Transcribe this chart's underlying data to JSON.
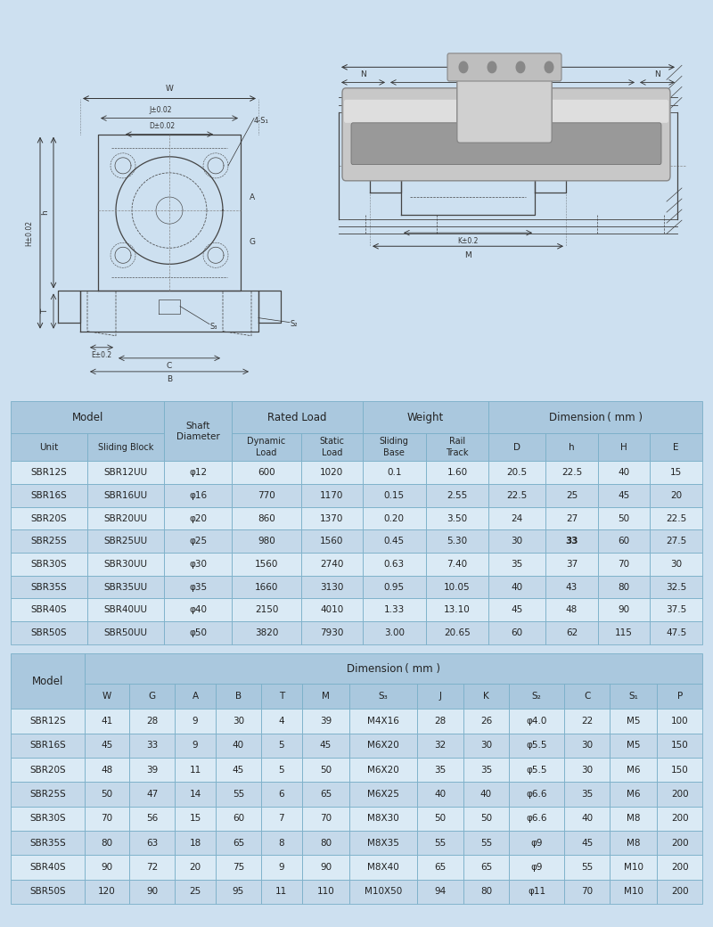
{
  "bg_color": "#cde0f0",
  "table1_header_bg": "#aac8de",
  "table1_row_bg_even": "#daeaf5",
  "table1_row_bg_odd": "#c5d9ea",
  "table_border_color": "#7aafc8",
  "text_color": "#222222",
  "table1_data": [
    [
      "SBR12S",
      "SBR12UU",
      "φ12",
      "600",
      "1020",
      "0.1",
      "1.60",
      "20.5",
      "22.5",
      "40",
      "15"
    ],
    [
      "SBR16S",
      "SBR16UU",
      "φ16",
      "770",
      "1170",
      "0.15",
      "2.55",
      "22.5",
      "25",
      "45",
      "20"
    ],
    [
      "SBR20S",
      "SBR20UU",
      "φ20",
      "860",
      "1370",
      "0.20",
      "3.50",
      "24",
      "27",
      "50",
      "22.5"
    ],
    [
      "SBR25S",
      "SBR25UU",
      "φ25",
      "980",
      "1560",
      "0.45",
      "5.30",
      "30",
      "33",
      "60",
      "27.5"
    ],
    [
      "SBR30S",
      "SBR30UU",
      "φ30",
      "1560",
      "2740",
      "0.63",
      "7.40",
      "35",
      "37",
      "70",
      "30"
    ],
    [
      "SBR35S",
      "SBR35UU",
      "φ35",
      "1660",
      "3130",
      "0.95",
      "10.05",
      "40",
      "43",
      "80",
      "32.5"
    ],
    [
      "SBR40S",
      "SBR40UU",
      "φ40",
      "2150",
      "4010",
      "1.33",
      "13.10",
      "45",
      "48",
      "90",
      "37.5"
    ],
    [
      "SBR50S",
      "SBR50UU",
      "φ50",
      "3820",
      "7930",
      "3.00",
      "20.65",
      "60",
      "62",
      "115",
      "47.5"
    ]
  ],
  "table1_bold_cell": [
    3,
    8
  ],
  "table2_col_headers": [
    "Model",
    "W",
    "G",
    "A",
    "B",
    "T",
    "M",
    "S₃",
    "J",
    "K",
    "S₂",
    "C",
    "S₁",
    "P"
  ],
  "table2_data": [
    [
      "SBR12S",
      "41",
      "28",
      "9",
      "30",
      "4",
      "39",
      "M4X16",
      "28",
      "26",
      "φ4.0",
      "22",
      "M5",
      "100"
    ],
    [
      "SBR16S",
      "45",
      "33",
      "9",
      "40",
      "5",
      "45",
      "M6X20",
      "32",
      "30",
      "φ5.5",
      "30",
      "M5",
      "150"
    ],
    [
      "SBR20S",
      "48",
      "39",
      "11",
      "45",
      "5",
      "50",
      "M6X20",
      "35",
      "35",
      "φ5.5",
      "30",
      "M6",
      "150"
    ],
    [
      "SBR25S",
      "50",
      "47",
      "14",
      "55",
      "6",
      "65",
      "M6X25",
      "40",
      "40",
      "φ6.6",
      "35",
      "M6",
      "200"
    ],
    [
      "SBR30S",
      "70",
      "56",
      "15",
      "60",
      "7",
      "70",
      "M8X30",
      "50",
      "50",
      "φ6.6",
      "40",
      "M8",
      "200"
    ],
    [
      "SBR35S",
      "80",
      "63",
      "18",
      "65",
      "8",
      "80",
      "M8X35",
      "55",
      "55",
      "φ9",
      "45",
      "M8",
      "200"
    ],
    [
      "SBR40S",
      "90",
      "72",
      "20",
      "75",
      "9",
      "90",
      "M8X40",
      "65",
      "65",
      "φ9",
      "55",
      "M10",
      "200"
    ],
    [
      "SBR50S",
      "120",
      "90",
      "25",
      "95",
      "11",
      "110",
      "M10X50",
      "94",
      "80",
      "φ11",
      "70",
      "M10",
      "200"
    ]
  ]
}
